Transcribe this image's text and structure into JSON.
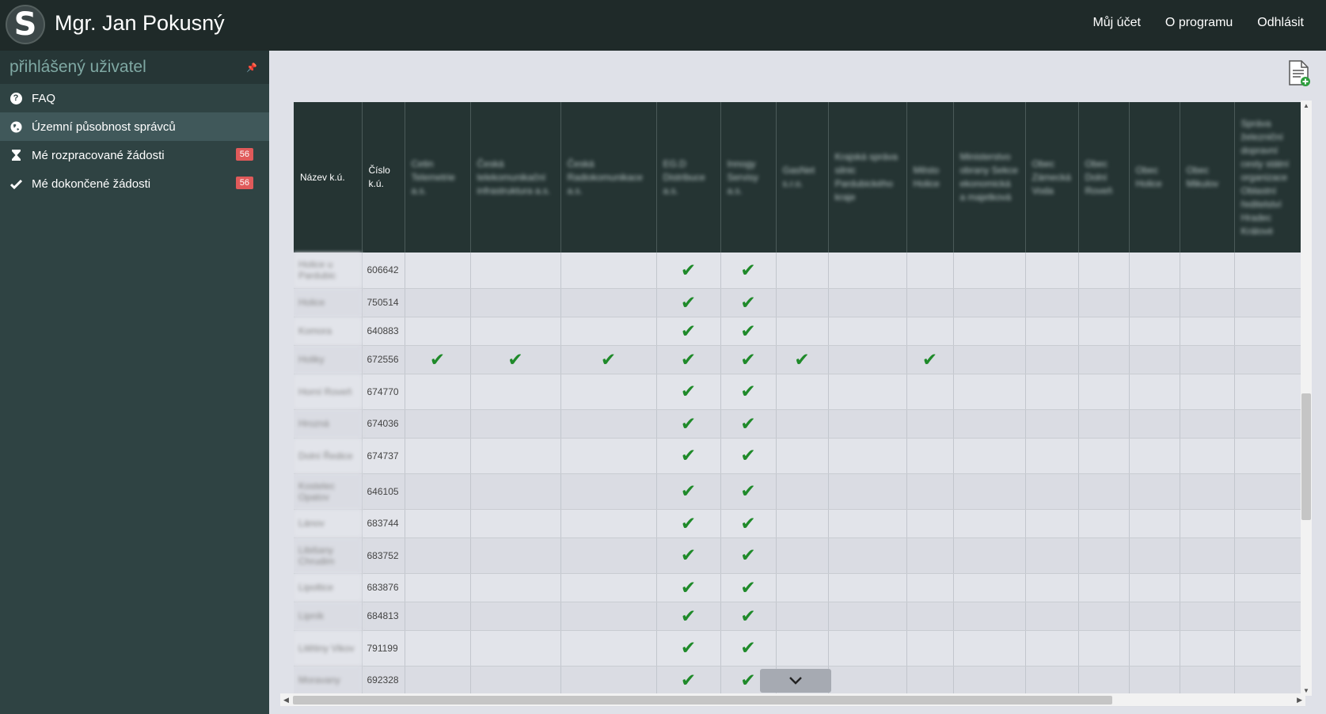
{
  "topbar": {
    "logo_letter": "S",
    "user_name": "Mgr. Jan Pokusný",
    "nav": [
      "Můj účet",
      "O programu",
      "Odhlásit"
    ]
  },
  "sidebar": {
    "title": "přihlášený uživatel",
    "pin_glyph": "📌",
    "items": [
      {
        "label": "FAQ",
        "icon": "question-circle-icon",
        "active": false
      },
      {
        "label": "Územní působnost správců",
        "icon": "globe-icon",
        "active": true
      },
      {
        "label": "Mé rozpracované žádosti",
        "icon": "hourglass-icon",
        "badge": "56",
        "active": false
      },
      {
        "label": "Mé dokončené žádosti",
        "icon": "check-icon",
        "badge": "56",
        "active": false
      }
    ]
  },
  "table": {
    "headers": [
      "Název k.ú.",
      "Číslo k.ú.",
      "Cetin Telemetrie a.s.",
      "Česká telekomunikační infrastruktura a.s.",
      "Česká Radiokomunikace a.s.",
      "EG.D Distribuce a.s.",
      "Innogy Servisy a.s.",
      "GasNet s.r.o.",
      "Krajská správa silnic Pardubického kraje",
      "Město Holice",
      "Ministerstvo obrany Sekce ekonomická a majetková",
      "Obec Zámecká Voda",
      "Obec Dolní Roveň",
      "Obec Holice",
      "Obec Mikulov",
      "Správa železniční dopravní cesty státní organizace Oblastní ředitelství Hradec Králové"
    ],
    "rows": [
      {
        "name": "Holice u Pardubic",
        "code": "606642",
        "checks": [
          3,
          4
        ]
      },
      {
        "name": "Holice",
        "code": "750514",
        "checks": [
          3,
          4
        ]
      },
      {
        "name": "Komora",
        "code": "640883",
        "checks": [
          3,
          4
        ]
      },
      {
        "name": "Holiky",
        "code": "672556",
        "checks": [
          0,
          1,
          2,
          3,
          4,
          5,
          7
        ]
      },
      {
        "name": "Horní Roveň",
        "code": "674770",
        "checks": [
          3,
          4
        ]
      },
      {
        "name": "Hrozná",
        "code": "674036",
        "checks": [
          3,
          4
        ]
      },
      {
        "name": "Dolní Ředice",
        "code": "674737",
        "checks": [
          3,
          4
        ]
      },
      {
        "name": "Kostelec Opatov",
        "code": "646105",
        "checks": [
          3,
          4
        ]
      },
      {
        "name": "Lánov",
        "code": "683744",
        "checks": [
          3,
          4
        ]
      },
      {
        "name": "Libišany Chrudim",
        "code": "683752",
        "checks": [
          3,
          4
        ]
      },
      {
        "name": "Lipoltice",
        "code": "683876",
        "checks": [
          3,
          4
        ]
      },
      {
        "name": "Lipník",
        "code": "684813",
        "checks": [
          3,
          4
        ]
      },
      {
        "name": "Litětiny Vikov",
        "code": "791199",
        "checks": [
          3,
          4
        ]
      },
      {
        "name": "Moravany",
        "code": "692328",
        "checks": [
          3,
          4
        ]
      }
    ]
  },
  "colors": {
    "topbar": "#1f2a29",
    "sidebar": "#2f4343",
    "check": "#1f8a2a",
    "badge": "#e05a5a"
  }
}
